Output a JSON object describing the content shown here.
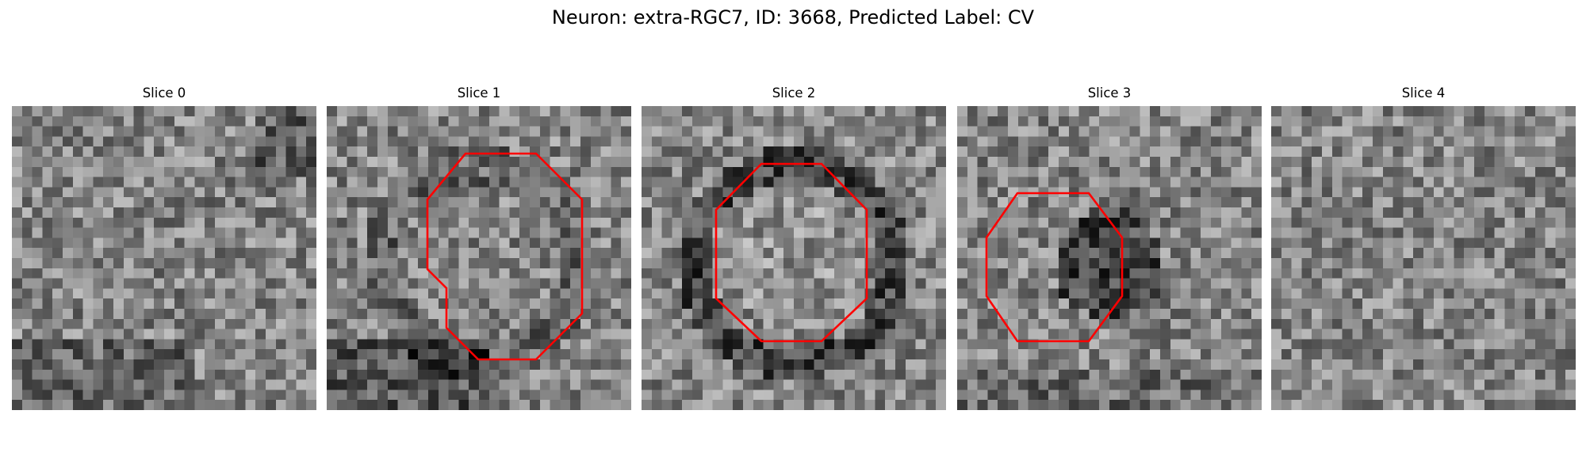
{
  "figure": {
    "title": "Neuron: extra-RGC7, ID: 3668, Predicted Label: CV",
    "outline_color": "#ff0000"
  },
  "panels": [
    {
      "title": "Slice 0",
      "has_outline": false
    },
    {
      "title": "Slice 1",
      "has_outline": true
    },
    {
      "title": "Slice 2",
      "has_outline": true
    },
    {
      "title": "Slice 3",
      "has_outline": true
    },
    {
      "title": "Slice 4",
      "has_outline": false
    }
  ]
}
